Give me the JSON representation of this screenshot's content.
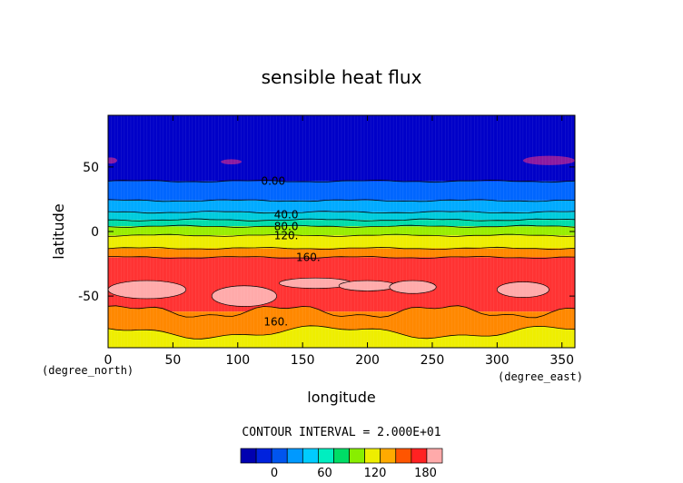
{
  "chart_data": {
    "type": "heatmap",
    "title": "sensible heat flux",
    "xlabel": "longitude",
    "ylabel": "latitude",
    "x_unit": "(degree_east)",
    "y_unit": "(degree_north)",
    "xlim": [
      0,
      360
    ],
    "ylim": [
      -90,
      90
    ],
    "x_ticks": [
      0,
      50,
      100,
      150,
      200,
      250,
      300,
      350
    ],
    "y_ticks": [
      -50,
      0,
      50
    ],
    "contour_interval_label": "CONTOUR INTERVAL = 2.000E+01",
    "contour_labels": [
      {
        "text": "0.00",
        "x": 118,
        "y": 39
      },
      {
        "text": "40.0",
        "x": 128,
        "y": 13
      },
      {
        "text": "80.0",
        "x": 128,
        "y": 4
      },
      {
        "text": "120.",
        "x": 128,
        "y": -3
      },
      {
        "text": "160.",
        "x": 145,
        "y": -20
      },
      {
        "text": "160.",
        "x": 120,
        "y": -70
      }
    ],
    "bands": [
      {
        "lat_range": [
          90,
          39
        ],
        "value": "0 to 20"
      },
      {
        "lat_range": [
          39,
          24
        ],
        "value": "20 to 40"
      },
      {
        "lat_range": [
          24,
          15
        ],
        "value": "40 to 60"
      },
      {
        "lat_range": [
          15,
          9
        ],
        "value": "60 to 80"
      },
      {
        "lat_range": [
          9,
          4
        ],
        "value": "80 to 100"
      },
      {
        "lat_range": [
          4,
          -3
        ],
        "value": "100 to 120"
      },
      {
        "lat_range": [
          -3,
          -13
        ],
        "value": "120 to 140"
      },
      {
        "lat_range": [
          -13,
          -20
        ],
        "value": "140 to 160"
      },
      {
        "lat_range": [
          -20,
          -62
        ],
        "value": "160 to 180"
      },
      {
        "lat_range": [
          -62,
          -78
        ],
        "value": "140 to 160"
      },
      {
        "lat_range": [
          -78,
          -90
        ],
        "value": "120 to 140"
      }
    ],
    "colorbar": {
      "levels": 12,
      "colors": [
        "#0000b0",
        "#0022dd",
        "#0055ee",
        "#0099ff",
        "#00ccff",
        "#00eec0",
        "#00dd66",
        "#88ee00",
        "#eeee00",
        "#ffaa00",
        "#ff5500",
        "#ff2222",
        "#ffaaaa"
      ],
      "tick_labels": [
        {
          "value": 0,
          "text": "0"
        },
        {
          "value": 60,
          "text": "60"
        },
        {
          "value": 120,
          "text": "120"
        },
        {
          "value": 180,
          "text": "180"
        }
      ],
      "range": [
        -40,
        200
      ]
    },
    "field_colors": {
      "cold_patch": "#8a1aa0",
      "high_flux": "#ffaaaa",
      "band_0_20": "#0000c8",
      "band_20_40": "#0066ff",
      "band_40_60": "#00aaff",
      "band_60_80": "#00ccdd",
      "band_80_100": "#00ddaa",
      "band_100_120": "#99ee00",
      "band_120_140": "#eeee00",
      "band_140_160": "#ff8800",
      "band_160_180": "#ff3333"
    }
  }
}
